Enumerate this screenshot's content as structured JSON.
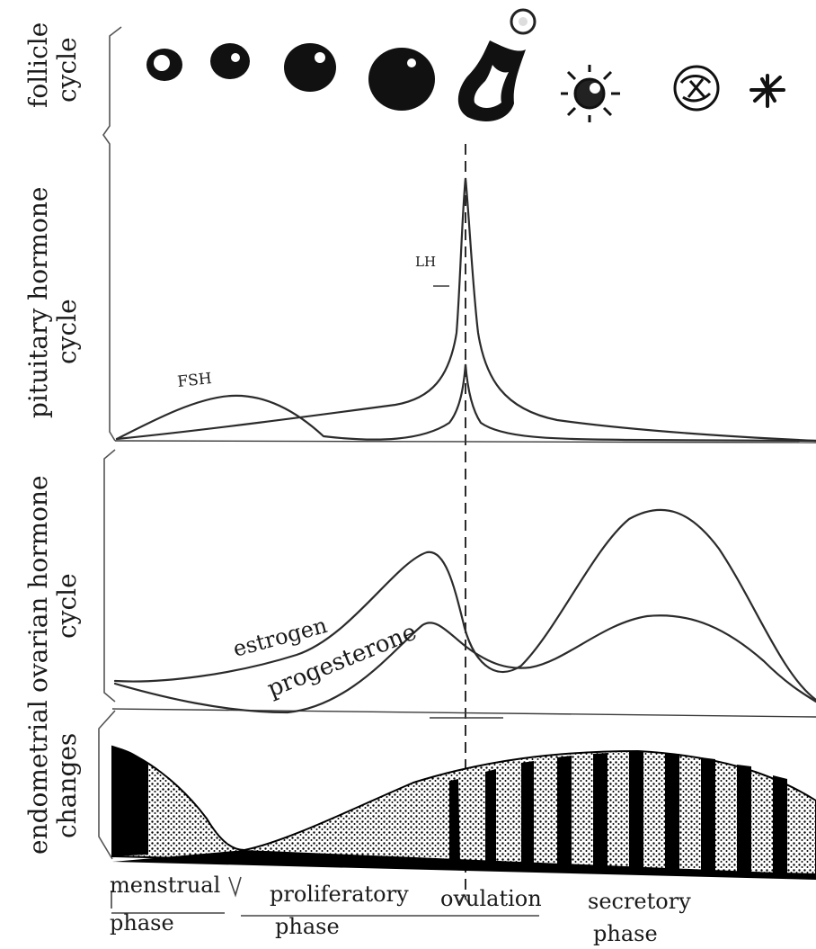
{
  "rows": {
    "follicle": "follicle\ncycle",
    "pituitary": "pituitary hormone\ncycle",
    "ovarian": "ovarian hormone\ncycle",
    "endometrial": "endometrial\nchanges"
  },
  "hormones": {
    "fsh": "FSH",
    "lh": "LH",
    "estrogen": "estrogen",
    "progesterone": "progesterone"
  },
  "phases": {
    "menstrual": "menstrual\nphase",
    "proliferatory": "proliferatory\nphase",
    "ovulation": "ovulation",
    "secretory": "secretory\nphase"
  },
  "icons": [
    "primary-follicle-icon",
    "growing-follicle-icon",
    "secondary-follicle-icon",
    "mature-follicle-icon",
    "ruptured-follicle-icon",
    "released-ovum-icon",
    "corpus-luteum-icon",
    "regressing-corpus-luteum-icon",
    "corpus-albicans-icon"
  ],
  "colors": {
    "ink": "#1a1a1a",
    "paper": "#ffffff"
  }
}
